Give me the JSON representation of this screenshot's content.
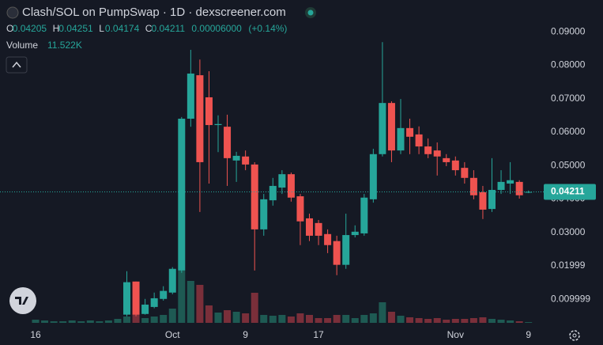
{
  "chart_data": {
    "type": "candlestick",
    "title": "Clash/SOL on PumpSwap · 1D · dexscreener.com",
    "categories": [
      "16",
      null,
      null,
      null,
      null,
      null,
      null,
      null,
      null,
      null,
      null,
      null,
      null,
      null,
      null,
      "Oct",
      null,
      null,
      null,
      null,
      null,
      null,
      null,
      "9",
      null,
      null,
      null,
      null,
      null,
      null,
      null,
      "17",
      null,
      null,
      null,
      null,
      null,
      null,
      null,
      null,
      null,
      null,
      null,
      null,
      null,
      null,
      "Nov",
      null,
      null,
      null,
      null,
      null,
      null,
      null,
      "9"
    ],
    "open": [
      null,
      null,
      null,
      null,
      null,
      null,
      null,
      null,
      null,
      null,
      0.0054,
      0.0153,
      0.0056,
      0.0077,
      0.0101,
      0.012,
      0.0186,
      0.064,
      0.077,
      0.0704,
      0.0621,
      0.0616,
      0.0515,
      0.0527,
      0.0503,
      0.0309,
      0.0396,
      0.0434,
      0.0474,
      0.0408,
      0.0342,
      0.0328,
      0.0295,
      0.0274,
      0.0203,
      0.0292,
      0.0297,
      0.0399,
      0.0534,
      0.0687,
      0.0545,
      0.0612,
      0.0593,
      0.0557,
      0.0545,
      0.0522,
      0.0515,
      0.0493,
      0.0463,
      0.042,
      0.037,
      0.0427,
      0.0446,
      0.0451,
      0.04205
    ],
    "high": [
      null,
      null,
      null,
      null,
      null,
      null,
      null,
      null,
      null,
      null,
      0.0184,
      0.0153,
      0.0101,
      0.012,
      0.0139,
      0.0196,
      0.0645,
      0.0846,
      0.0817,
      0.0782,
      0.065,
      0.0652,
      0.0541,
      0.0545,
      0.051,
      0.0415,
      0.0463,
      0.0486,
      0.0479,
      0.0415,
      0.0356,
      0.0337,
      0.0309,
      0.029,
      0.0356,
      0.0321,
      0.0415,
      0.055,
      0.0869,
      0.0692,
      0.0699,
      0.064,
      0.0617,
      0.0581,
      0.0569,
      0.0534,
      0.0527,
      0.051,
      0.0486,
      0.0439,
      0.0522,
      0.0486,
      0.051,
      0.0456,
      0.04251
    ],
    "low": [
      null,
      null,
      null,
      null,
      null,
      null,
      null,
      null,
      null,
      null,
      0.0049,
      0.0049,
      0.0054,
      0.0073,
      0.0096,
      0.0115,
      0.0179,
      0.0616,
      0.0361,
      0.0446,
      0.054,
      0.0439,
      0.0451,
      0.0486,
      0.0186,
      0.029,
      0.038,
      0.0415,
      0.0392,
      0.0262,
      0.0274,
      0.0262,
      0.0238,
      0.0172,
      0.0191,
      0.0285,
      0.029,
      0.0389,
      0.0527,
      0.051,
      0.0534,
      0.0534,
      0.0534,
      0.0522,
      0.047,
      0.0498,
      0.047,
      0.0446,
      0.0399,
      0.034,
      0.0361,
      0.0415,
      0.0415,
      0.0401,
      0.04174
    ],
    "close": [
      null,
      null,
      null,
      null,
      null,
      null,
      null,
      null,
      null,
      null,
      0.0151,
      0.0054,
      0.0084,
      0.0103,
      0.0125,
      0.0191,
      0.064,
      0.0775,
      0.051,
      0.0621,
      0.0624,
      0.0522,
      0.0529,
      0.0503,
      0.0309,
      0.0399,
      0.0439,
      0.0474,
      0.0404,
      0.0333,
      0.029,
      0.029,
      0.0262,
      0.0203,
      0.0292,
      0.0302,
      0.0404,
      0.0534,
      0.0687,
      0.0545,
      0.0612,
      0.0586,
      0.0557,
      0.0534,
      0.0527,
      0.051,
      0.0486,
      0.0463,
      0.0411,
      0.0368,
      0.0427,
      0.0451,
      0.0456,
      0.0411,
      0.04211
    ],
    "volume": {
      "name": "Volume",
      "values": [
        48000,
        36000,
        24000,
        24000,
        36000,
        24000,
        36000,
        24000,
        36000,
        60000,
        96000,
        144000,
        72000,
        96000,
        120000,
        216000,
        792000,
        636000,
        576000,
        264000,
        156000,
        192000,
        168000,
        144000,
        456000,
        120000,
        108000,
        120000,
        96000,
        144000,
        120000,
        72000,
        72000,
        120000,
        120000,
        72000,
        120000,
        144000,
        312000,
        168000,
        108000,
        84000,
        72000,
        60000,
        72000,
        48000,
        60000,
        60000,
        72000,
        84000,
        60000,
        48000,
        36000,
        24000,
        11522
      ],
      "last_label": "11.522K"
    },
    "legend": {
      "labels": [
        "O",
        "H",
        "L",
        "C"
      ],
      "change": "0.00006000",
      "change_pct": "(+0.14%)"
    },
    "ylim": [
      0.002,
      0.0995
    ],
    "yticks": [
      {
        "value": 0.009999,
        "label": "0.009999"
      },
      {
        "value": 0.01999,
        "label": "0.01999"
      },
      {
        "value": 0.03,
        "label": "0.03000"
      },
      {
        "value": 0.04,
        "label": "0.04000"
      },
      {
        "value": 0.05,
        "label": "0.05000"
      },
      {
        "value": 0.06,
        "label": "0.06000"
      },
      {
        "value": 0.07,
        "label": "0.07000"
      },
      {
        "value": 0.08,
        "label": "0.08000"
      },
      {
        "value": 0.09,
        "label": "0.09000"
      }
    ],
    "up_color": "#26a69a",
    "down_color": "#ef5350",
    "volume_up_color": "#1e5a53",
    "volume_down_color": "#7a2f3a"
  }
}
